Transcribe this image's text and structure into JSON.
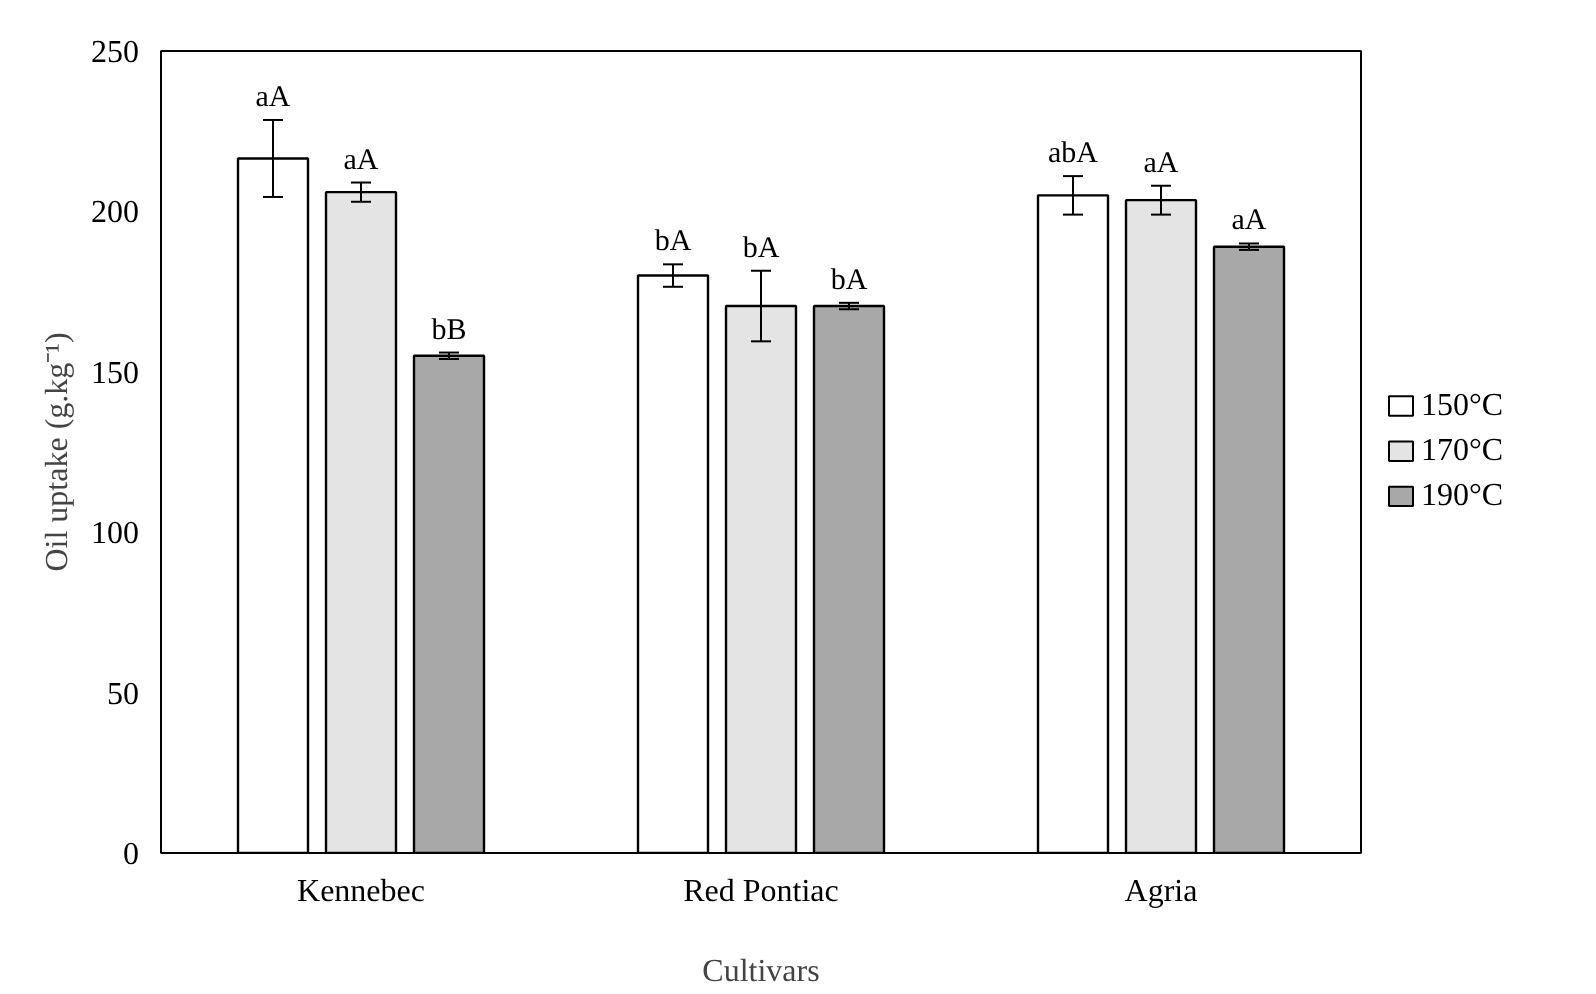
{
  "chart_data": {
    "type": "bar",
    "xlabel": "Cultivars",
    "ylabel": "Oil uptake (g.kg⁻¹)",
    "categories": [
      "Kennebec",
      "Red Pontiac",
      "Agria"
    ],
    "series": [
      {
        "name": "150°C",
        "color": "#ffffff",
        "values": [
          216.5,
          180,
          205
        ],
        "errors": [
          12,
          3.5,
          6
        ],
        "value_labels": [
          "aA",
          "bA",
          "abA"
        ]
      },
      {
        "name": "170°C",
        "color": "#e4e4e4",
        "values": [
          206,
          170.5,
          203.5
        ],
        "errors": [
          3,
          11,
          4.5
        ],
        "value_labels": [
          "aA",
          "bA",
          "aA"
        ]
      },
      {
        "name": "190°C",
        "color": "#a8a8a8",
        "values": [
          155,
          170.5,
          189
        ],
        "errors": [
          1,
          1,
          1
        ],
        "value_labels": [
          "bB",
          "bA",
          "aA"
        ]
      }
    ],
    "ylim": [
      0,
      250
    ],
    "yticks": [
      0,
      50,
      100,
      150,
      200,
      250
    ],
    "grid": false,
    "legend": "right"
  }
}
